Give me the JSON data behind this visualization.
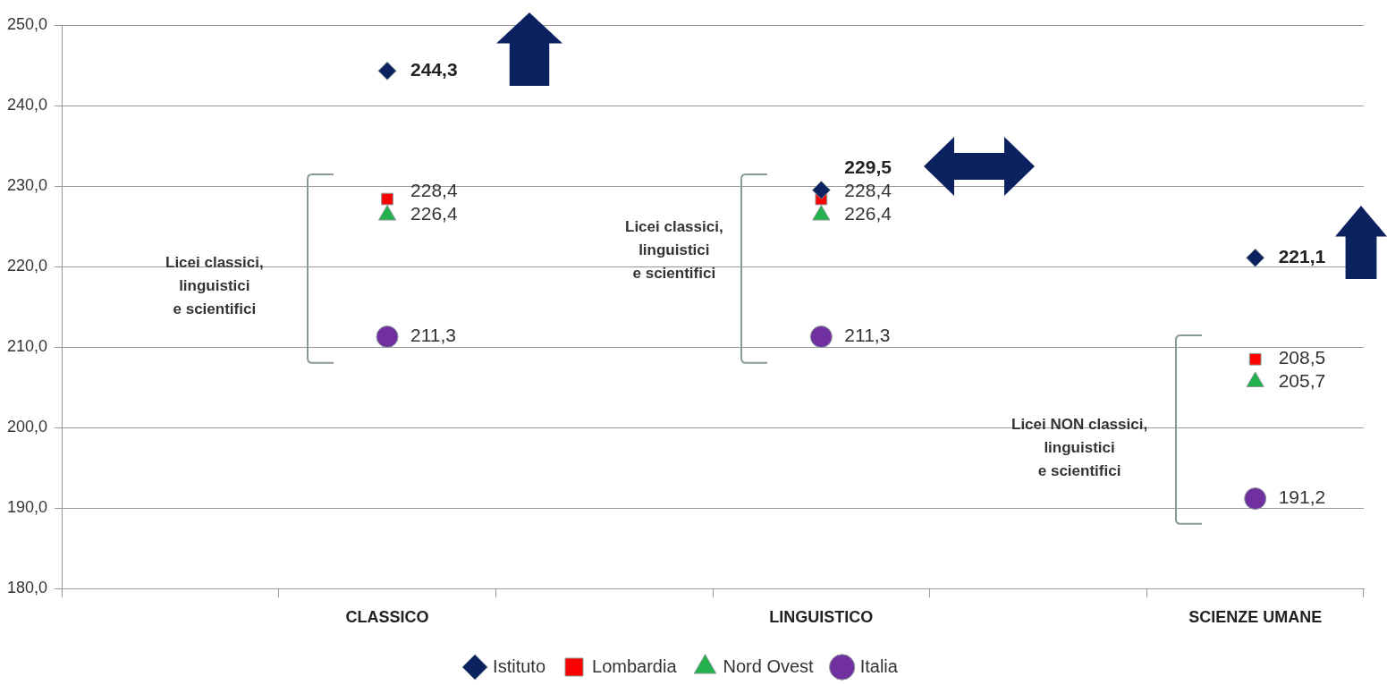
{
  "chart_data": {
    "type": "scatter",
    "categories": [
      null,
      "CLASSICO",
      null,
      "LINGUISTICO",
      null,
      "SCIENZE UMANE"
    ],
    "series": [
      {
        "name": "Istituto",
        "color": "#0b2160",
        "marker": "diamond",
        "values": [
          null,
          244.3,
          null,
          229.5,
          null,
          221.1
        ],
        "value_labels": [
          null,
          "244,3",
          null,
          "229,5",
          null,
          "221,1"
        ]
      },
      {
        "name": "Lombardia",
        "color": "#ff0000",
        "marker": "square",
        "values": [
          null,
          228.4,
          null,
          228.4,
          null,
          208.5
        ],
        "value_labels": [
          null,
          "228,4",
          null,
          "228,4",
          null,
          "208,5"
        ]
      },
      {
        "name": "Nord Ovest",
        "color": "#22b14c",
        "marker": "triangle",
        "values": [
          null,
          226.4,
          null,
          226.4,
          null,
          205.7
        ],
        "value_labels": [
          null,
          "226,4",
          null,
          "226,4",
          null,
          "205,7"
        ]
      },
      {
        "name": "Italia",
        "color": "#7030a0",
        "marker": "circle",
        "values": [
          null,
          211.3,
          null,
          211.3,
          null,
          191.2
        ],
        "value_labels": [
          null,
          "211,3",
          null,
          "211,3",
          null,
          "191,2"
        ]
      }
    ],
    "ylim": [
      180,
      250
    ],
    "yticks": [
      {
        "value": 180,
        "label": "180,0"
      },
      {
        "value": 190,
        "label": "190,0"
      },
      {
        "value": 200,
        "label": "200,0"
      },
      {
        "value": 210,
        "label": "210,0"
      },
      {
        "value": 220,
        "label": "220,0"
      },
      {
        "value": 230,
        "label": "230,0"
      },
      {
        "value": 240,
        "label": "240,0"
      },
      {
        "value": 250,
        "label": "250,0"
      }
    ],
    "grid": "y",
    "legend": "bottom",
    "annotations": [
      "Licei classici,\nlinguistici\ne scientifici",
      "Licei classici,\nlinguistici\ne scientifici",
      "Licei  NON classici,\nlinguistici\ne scientifici"
    ]
  }
}
